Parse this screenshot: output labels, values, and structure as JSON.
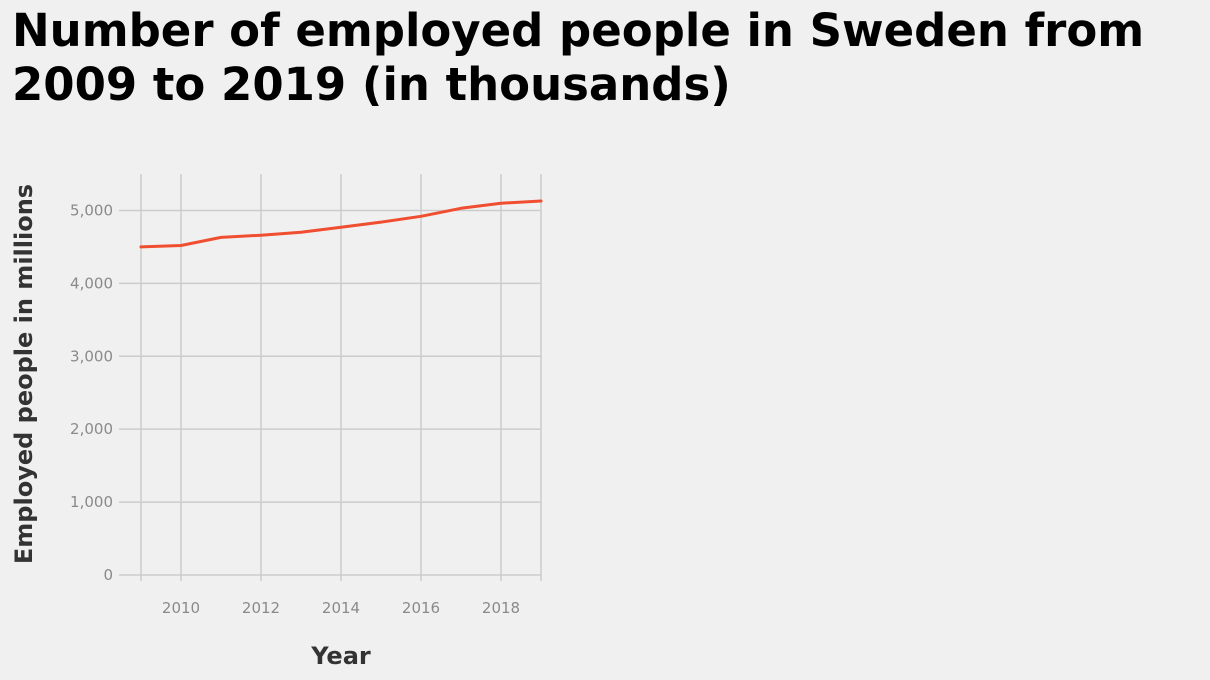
{
  "chart_data": {
    "type": "line",
    "title": "Number of employed people in Sweden from 2009 to 2019 (in thousands)",
    "xlabel": "Year",
    "ylabel": "Employed people in millions",
    "x": [
      2009,
      2010,
      2011,
      2012,
      2013,
      2014,
      2015,
      2016,
      2017,
      2018,
      2019
    ],
    "series": [
      {
        "values": [
          4500,
          4520,
          4630,
          4660,
          4700,
          4770,
          4840,
          4920,
          5030,
          5100,
          5130
        ],
        "color": "#f04e30"
      }
    ],
    "xlim": [
      2009,
      2019
    ],
    "ylim": [
      0,
      5500
    ],
    "xticks": [
      2010,
      2012,
      2014,
      2016,
      2018
    ],
    "xtick_labels": [
      "2010",
      "2012",
      "2014",
      "2016",
      "2018"
    ],
    "yticks": [
      0,
      1000,
      2000,
      3000,
      4000,
      5000
    ],
    "ytick_labels": [
      "0",
      "1,000",
      "2,000",
      "3,000",
      "4,000",
      "5,000"
    ],
    "grid": true,
    "gridline_color": "#cccccc",
    "label_color": "#8a8a8a"
  }
}
